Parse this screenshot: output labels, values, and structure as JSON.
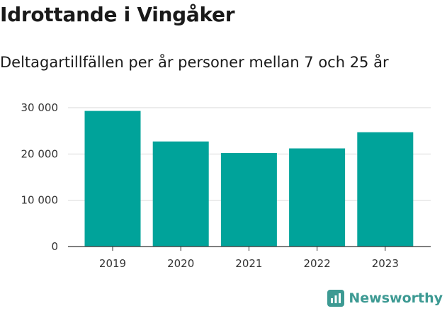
{
  "title": "Idrottande i Vingåker",
  "subtitle": "Deltagartillfällen per år personer mellan 7 och 25 år",
  "brand": {
    "name": "Newsworthy",
    "icon": "newsworthy-logo-icon",
    "color": "#3d9a93"
  },
  "chart_data": {
    "type": "bar",
    "title": "Idrottande i Vingåker",
    "subtitle": "Deltagartillfällen per år personer mellan 7 och 25 år",
    "categories": [
      "2019",
      "2020",
      "2021",
      "2022",
      "2023"
    ],
    "values": [
      29300,
      22700,
      20200,
      21200,
      24700
    ],
    "ylim": [
      0,
      30000
    ],
    "yticks": [
      0,
      10000,
      20000,
      30000
    ],
    "ytick_labels": [
      "0",
      "10 000",
      "20 000",
      "30 000"
    ],
    "grid": true,
    "bar_color": "#00a39a",
    "xlabel": "",
    "ylabel": ""
  }
}
